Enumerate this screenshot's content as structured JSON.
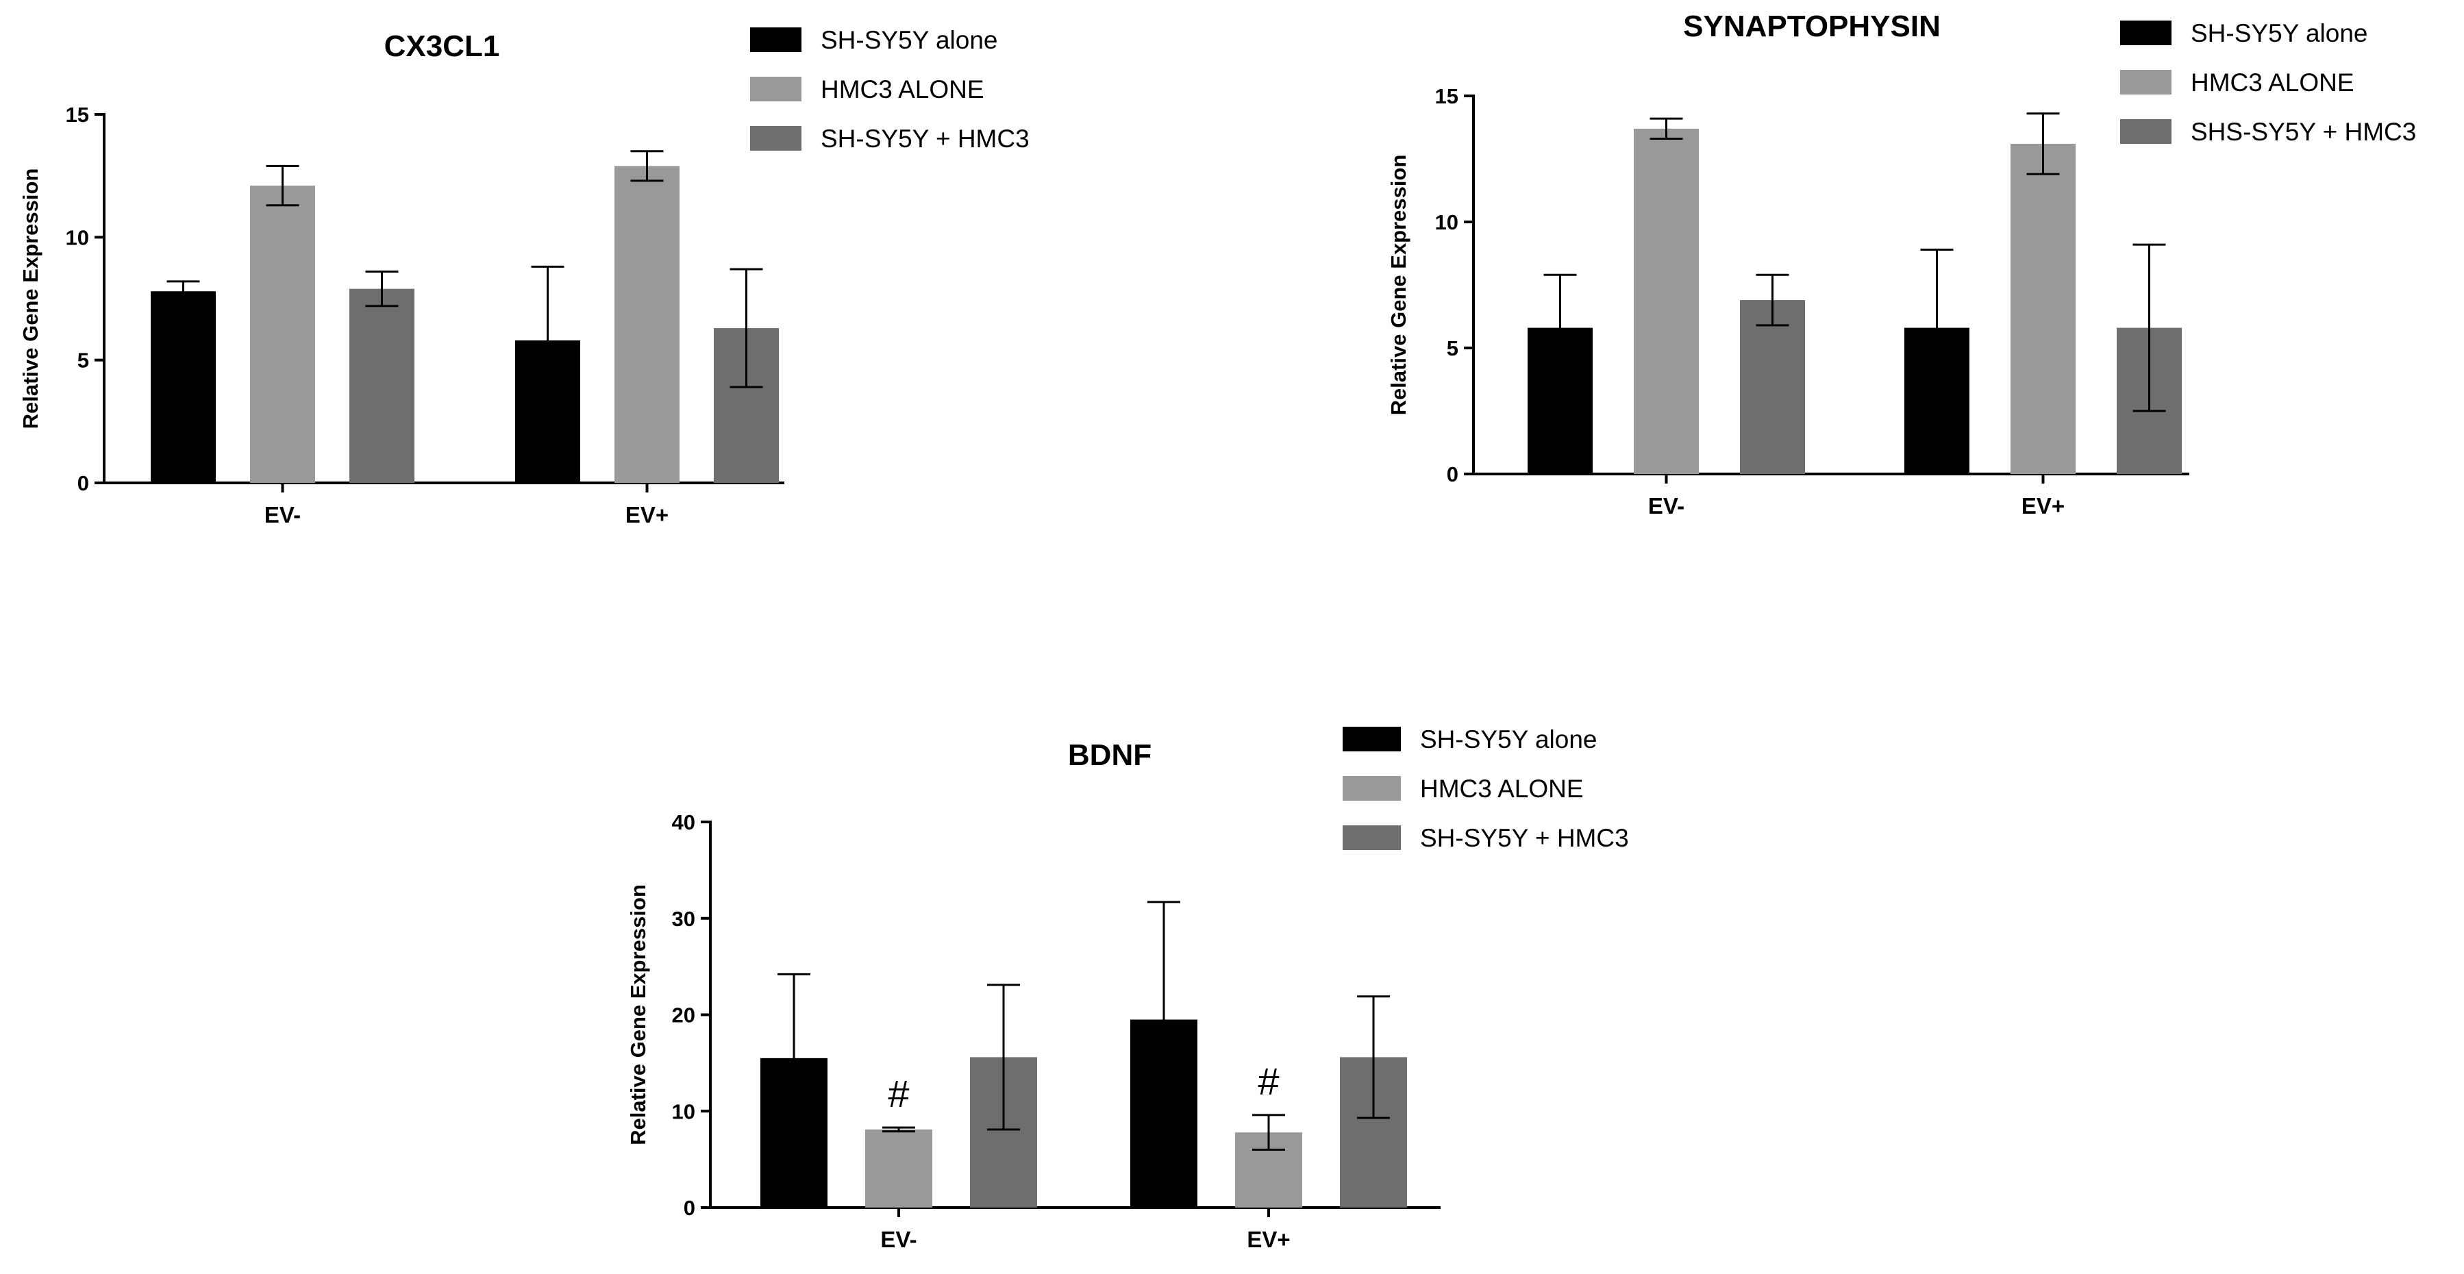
{
  "colors": {
    "SH-SY5Y alone": "#000000",
    "HMC3 ALONE": "#999999",
    "SH-SY5Y + HMC3": "#6e6e6e"
  },
  "chart_data": [
    {
      "type": "bar",
      "title": "CX3CL1",
      "ylabel": "Relative Gene Expression",
      "xlabel": "",
      "ylim": [
        0,
        15
      ],
      "yticks": [
        "0",
        "5",
        "10",
        "15"
      ],
      "categories": [
        "EV-",
        "EV+"
      ],
      "legend_position": "top-right",
      "series": [
        {
          "name": "SH-SY5Y alone",
          "values": [
            7.8,
            5.8
          ],
          "errors": [
            0.4,
            3.0
          ]
        },
        {
          "name": "HMC3 ALONE",
          "values": [
            12.1,
            12.9
          ],
          "errors": [
            0.8,
            0.6
          ]
        },
        {
          "name": "SH-SY5Y + HMC3",
          "values": [
            7.9,
            6.3
          ],
          "errors": [
            0.7,
            2.4
          ]
        }
      ],
      "annotations": []
    },
    {
      "type": "bar",
      "title": "SYNAPTOPHYSIN",
      "ylabel": "Relative Gene Expression",
      "xlabel": "",
      "ylim": [
        0,
        15
      ],
      "yticks": [
        "0",
        "5",
        "10",
        "15"
      ],
      "categories": [
        "EV-",
        "EV+"
      ],
      "legend_position": "top-right",
      "series": [
        {
          "name": "SH-SY5Y alone",
          "values": [
            5.8,
            5.8
          ],
          "errors": [
            2.1,
            3.1
          ]
        },
        {
          "name": "HMC3 ALONE",
          "values": [
            13.7,
            13.1
          ],
          "errors": [
            0.4,
            1.2
          ]
        },
        {
          "name": "SHS-SY5Y + HMC3",
          "values": [
            6.9,
            5.8
          ],
          "errors": [
            1.0,
            3.3
          ]
        }
      ],
      "annotations": []
    },
    {
      "type": "bar",
      "title": "BDNF",
      "ylabel": "Relative Gene Expression",
      "xlabel": "",
      "ylim": [
        0,
        40
      ],
      "yticks": [
        "0",
        "10",
        "20",
        "30",
        "40"
      ],
      "categories": [
        "EV-",
        "EV+"
      ],
      "legend_position": "top-right",
      "series": [
        {
          "name": "SH-SY5Y alone",
          "values": [
            15.5,
            19.5
          ],
          "errors": [
            8.7,
            12.2
          ]
        },
        {
          "name": "HMC3 ALONE",
          "values": [
            8.1,
            7.8
          ],
          "errors": [
            0.2,
            1.8
          ]
        },
        {
          "name": "SH-SY5Y + HMC3",
          "values": [
            15.6,
            15.6
          ],
          "errors": [
            7.5,
            6.3
          ]
        }
      ],
      "annotations": [
        {
          "text": "#",
          "category": "EV-",
          "series": "HMC3 ALONE"
        },
        {
          "text": "#",
          "category": "EV+",
          "series": "HMC3 ALONE"
        }
      ]
    }
  ]
}
